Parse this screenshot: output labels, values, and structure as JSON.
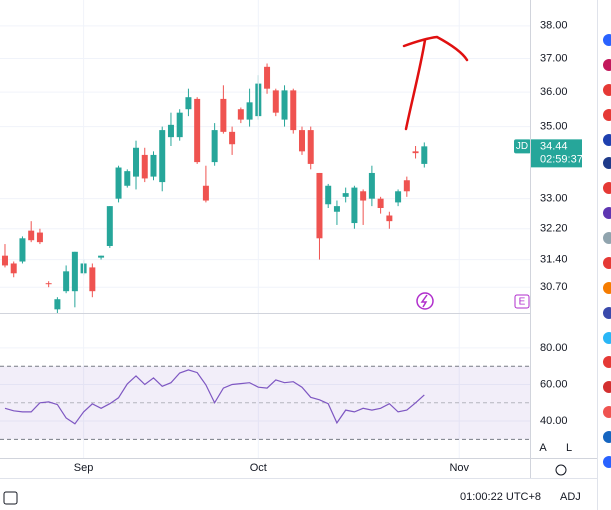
{
  "chart_data": [
    {
      "type": "candlestick",
      "log_scale": true,
      "up_color": "#26a69a",
      "down_color": "#ef5350",
      "open": [
        31.5,
        31.3,
        31.35,
        32.15,
        32.1,
        30.8,
        30.15,
        30.6,
        30.6,
        31.05,
        31.2,
        31.45,
        31.75,
        33.0,
        33.35,
        33.6,
        34.2,
        33.6,
        33.45,
        34.7,
        34.7,
        35.5,
        35.8,
        33.35,
        34.0,
        35.8,
        34.85,
        35.5,
        35.2,
        35.3,
        36.75,
        36.05,
        35.2,
        36.05,
        34.9,
        34.9,
        33.7,
        32.85,
        32.65,
        33.05,
        32.35,
        33.2,
        33.0,
        33.0,
        32.55,
        32.9,
        33.5,
        34.3,
        33.95
      ],
      "high": [
        31.8,
        31.35,
        32.0,
        32.4,
        32.2,
        30.85,
        30.45,
        31.25,
        31.6,
        31.4,
        31.3,
        31.5,
        32.8,
        33.9,
        33.8,
        34.6,
        34.4,
        34.3,
        35.0,
        35.4,
        35.5,
        36.1,
        35.85,
        33.9,
        35.1,
        36.2,
        35.0,
        35.55,
        36.1,
        36.5,
        36.85,
        36.1,
        36.2,
        36.1,
        35.0,
        35.0,
        33.7,
        33.4,
        32.95,
        33.3,
        33.35,
        33.25,
        33.9,
        33.05,
        32.65,
        33.25,
        33.6,
        34.45,
        34.55
      ],
      "low": [
        31.2,
        30.95,
        31.3,
        31.85,
        31.8,
        30.7,
        30.05,
        30.55,
        30.2,
        31.0,
        30.45,
        31.4,
        31.7,
        32.9,
        33.3,
        33.25,
        33.45,
        33.5,
        33.2,
        34.45,
        34.6,
        35.3,
        33.95,
        32.9,
        33.9,
        34.8,
        34.2,
        35.1,
        35.0,
        35.2,
        35.95,
        35.3,
        35.0,
        34.8,
        34.2,
        33.8,
        31.4,
        32.75,
        32.3,
        32.9,
        32.2,
        32.3,
        32.8,
        32.6,
        32.2,
        32.8,
        33.05,
        34.1,
        33.85
      ],
      "close": [
        31.25,
        31.05,
        31.95,
        31.9,
        31.85,
        30.78,
        30.4,
        31.1,
        31.6,
        31.3,
        30.6,
        31.5,
        32.8,
        33.85,
        33.75,
        34.4,
        33.55,
        34.2,
        34.9,
        35.05,
        35.4,
        35.85,
        34.0,
        32.95,
        34.9,
        34.85,
        34.5,
        35.2,
        35.7,
        36.25,
        36.1,
        35.4,
        36.05,
        34.9,
        34.3,
        33.95,
        31.95,
        33.35,
        32.8,
        33.15,
        33.3,
        32.95,
        33.7,
        32.75,
        32.4,
        33.2,
        33.2,
        34.25,
        34.44
      ],
      "ylim": [
        30.06,
        38.81
      ],
      "yticks": [
        {
          "value": 38,
          "label": "38.00"
        },
        {
          "value": 37,
          "label": "37.00"
        },
        {
          "value": 36,
          "label": "36.00"
        },
        {
          "value": 35,
          "label": "35.00"
        },
        {
          "value": 33,
          "label": "33.00"
        },
        {
          "value": 32.2,
          "label": "32.20"
        },
        {
          "value": 31.4,
          "label": "31.40"
        },
        {
          "value": 30.7,
          "label": "30.70"
        }
      ],
      "xlim": [
        -0.57,
        60.1
      ],
      "symbol": "JD",
      "last_price": 34.44,
      "countdown": "02:59:37"
    },
    {
      "type": "line",
      "color": "#7e57c2",
      "values": [
        47,
        45.6,
        45,
        45,
        50,
        50.5,
        49,
        41.7,
        38.5,
        45,
        49.4,
        47,
        49.5,
        52.7,
        60.3,
        64.7,
        60,
        63.6,
        59,
        61,
        66.3,
        68,
        66.5,
        59.8,
        50,
        58,
        60,
        60.5,
        61,
        58.5,
        58,
        62.5,
        61,
        61.5,
        58.5,
        53,
        51.6,
        49.5,
        39,
        46,
        45,
        47,
        46,
        47,
        49.5,
        45,
        46,
        50,
        54.3
      ],
      "ylim": [
        19.8,
        98
      ],
      "yticks": [
        {
          "value": 80,
          "label": "80.00"
        },
        {
          "value": 60,
          "label": "60.00"
        },
        {
          "value": 40,
          "label": "40.00"
        }
      ],
      "band": [
        30,
        70
      ],
      "midline": 50,
      "xlim": [
        -0.57,
        60.1
      ],
      "xticks": [
        {
          "value": 9,
          "label": "Sep"
        },
        {
          "value": 29,
          "label": "Oct"
        },
        {
          "value": 52,
          "label": "Nov"
        }
      ]
    }
  ],
  "ui": {
    "clock": "01:00:22 UTC+8",
    "adj": "ADJ",
    "auto": "A",
    "log": "L",
    "event": "E"
  }
}
